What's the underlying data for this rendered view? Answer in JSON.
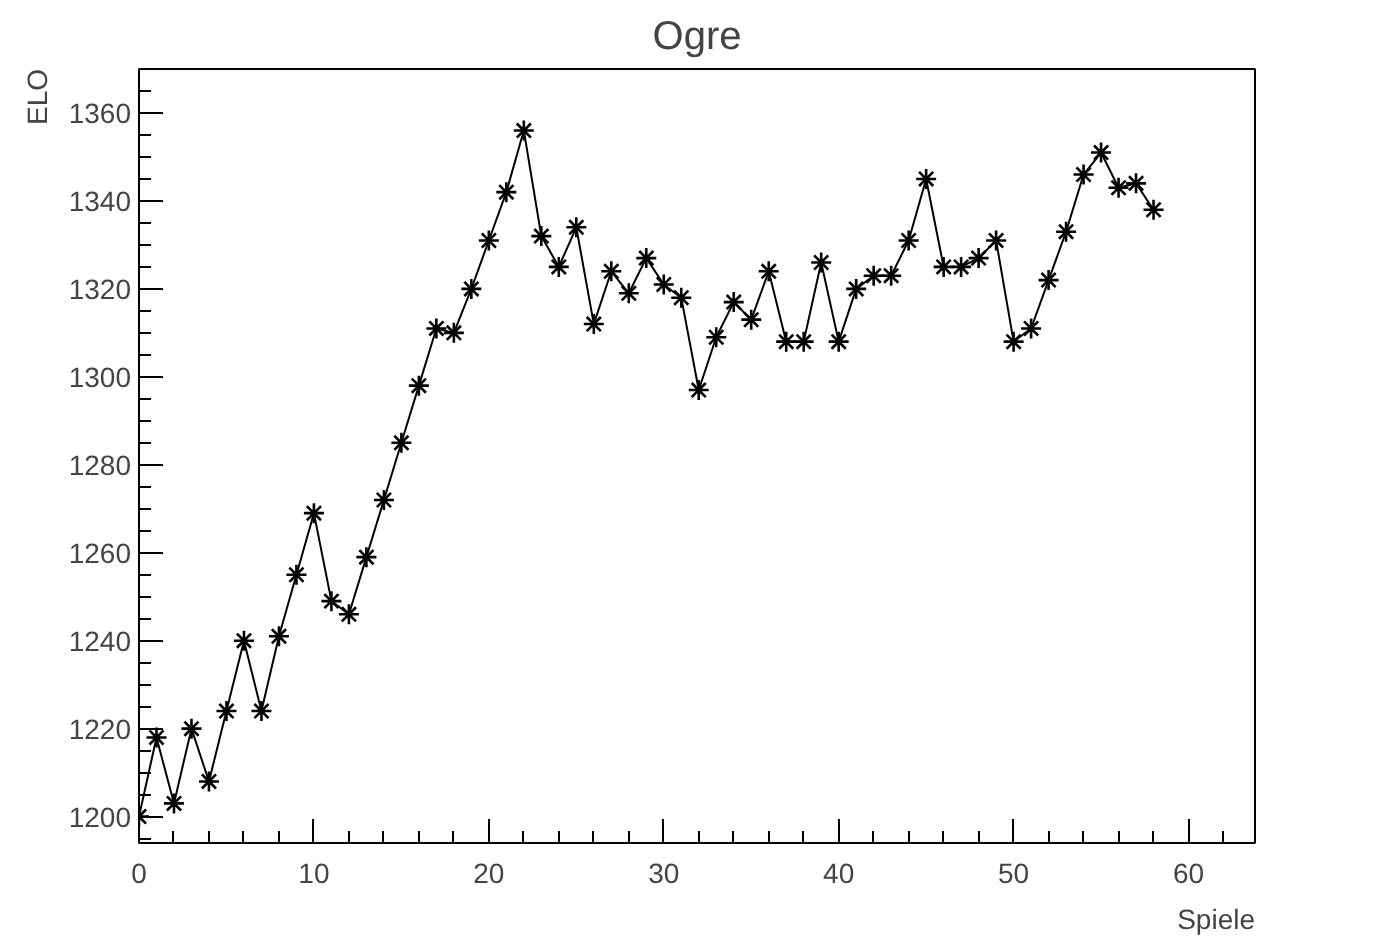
{
  "chart_data": {
    "type": "line",
    "title": "Ogre",
    "xlabel": "Spiele",
    "ylabel": "ELO",
    "x": [
      0,
      1,
      2,
      3,
      4,
      5,
      6,
      7,
      8,
      9,
      10,
      11,
      12,
      13,
      14,
      15,
      16,
      17,
      18,
      19,
      20,
      21,
      22,
      23,
      24,
      25,
      26,
      27,
      28,
      29,
      30,
      31,
      32,
      33,
      34,
      35,
      36,
      37,
      38,
      39,
      40,
      41,
      42,
      43,
      44,
      45,
      46,
      47,
      48,
      49,
      50,
      51,
      52,
      53,
      54,
      55,
      56,
      57,
      58
    ],
    "series": [
      {
        "color": "#000000",
        "values": [
          1200,
          1218,
          1203,
          1220,
          1208,
          1224,
          1240,
          1224,
          1241,
          1255,
          1269,
          1249,
          1246,
          1259,
          1272,
          1285,
          1298,
          1311,
          1310,
          1320,
          1331,
          1342,
          1356,
          1332,
          1325,
          1334,
          1312,
          1324,
          1319,
          1327,
          1321,
          1318,
          1297,
          1309,
          1317,
          1313,
          1324,
          1308,
          1308,
          1326,
          1308,
          1320,
          1323,
          1323,
          1331,
          1345,
          1325,
          1325,
          1327,
          1331,
          1308,
          1311,
          1322,
          1333,
          1346,
          1351,
          1343,
          1344,
          1338
        ]
      }
    ],
    "xlim": [
      0,
      63.8
    ],
    "ylim": [
      1194,
      1370
    ],
    "xticks": [
      0,
      10,
      20,
      30,
      40,
      50,
      60
    ],
    "yticks": [
      1200,
      1220,
      1240,
      1260,
      1280,
      1300,
      1320,
      1340,
      1360
    ],
    "grid": false,
    "marker": "cross",
    "line_style": "solid"
  }
}
